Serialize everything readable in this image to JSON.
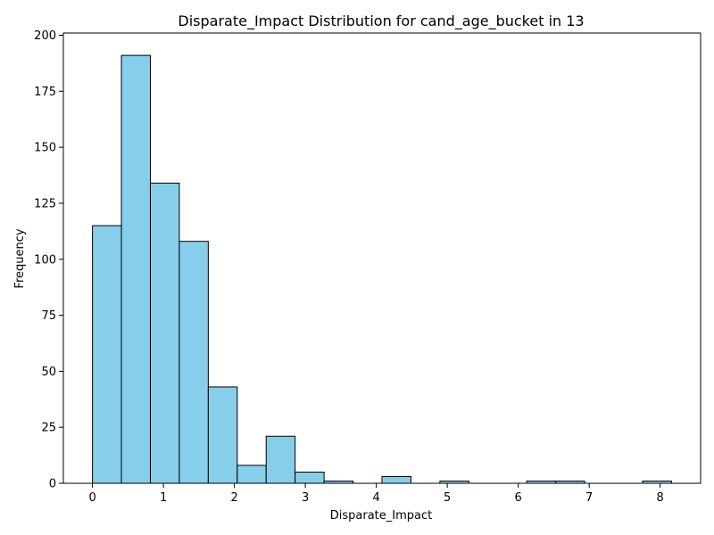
{
  "chart_data": {
    "type": "bar",
    "title": "Disparate_Impact Distribution for cand_age_bucket in 13",
    "xlabel": "Disparate_Impact",
    "ylabel": "Frequency",
    "xlim": [
      -0.41,
      8.57
    ],
    "ylim": [
      0,
      201
    ],
    "x_ticks": [
      0,
      1,
      2,
      3,
      4,
      5,
      6,
      7,
      8
    ],
    "y_ticks": [
      0,
      25,
      50,
      75,
      100,
      125,
      150,
      175,
      200
    ],
    "bin_start": 0,
    "bin_width": 0.408,
    "values": [
      115,
      191,
      134,
      108,
      43,
      8,
      21,
      5,
      1,
      0,
      3,
      0,
      1,
      0,
      0,
      1,
      1,
      0,
      0,
      1
    ],
    "bar_color": "#87ceeb",
    "edge_color": "#000000",
    "grid": false,
    "legend": "none"
  }
}
